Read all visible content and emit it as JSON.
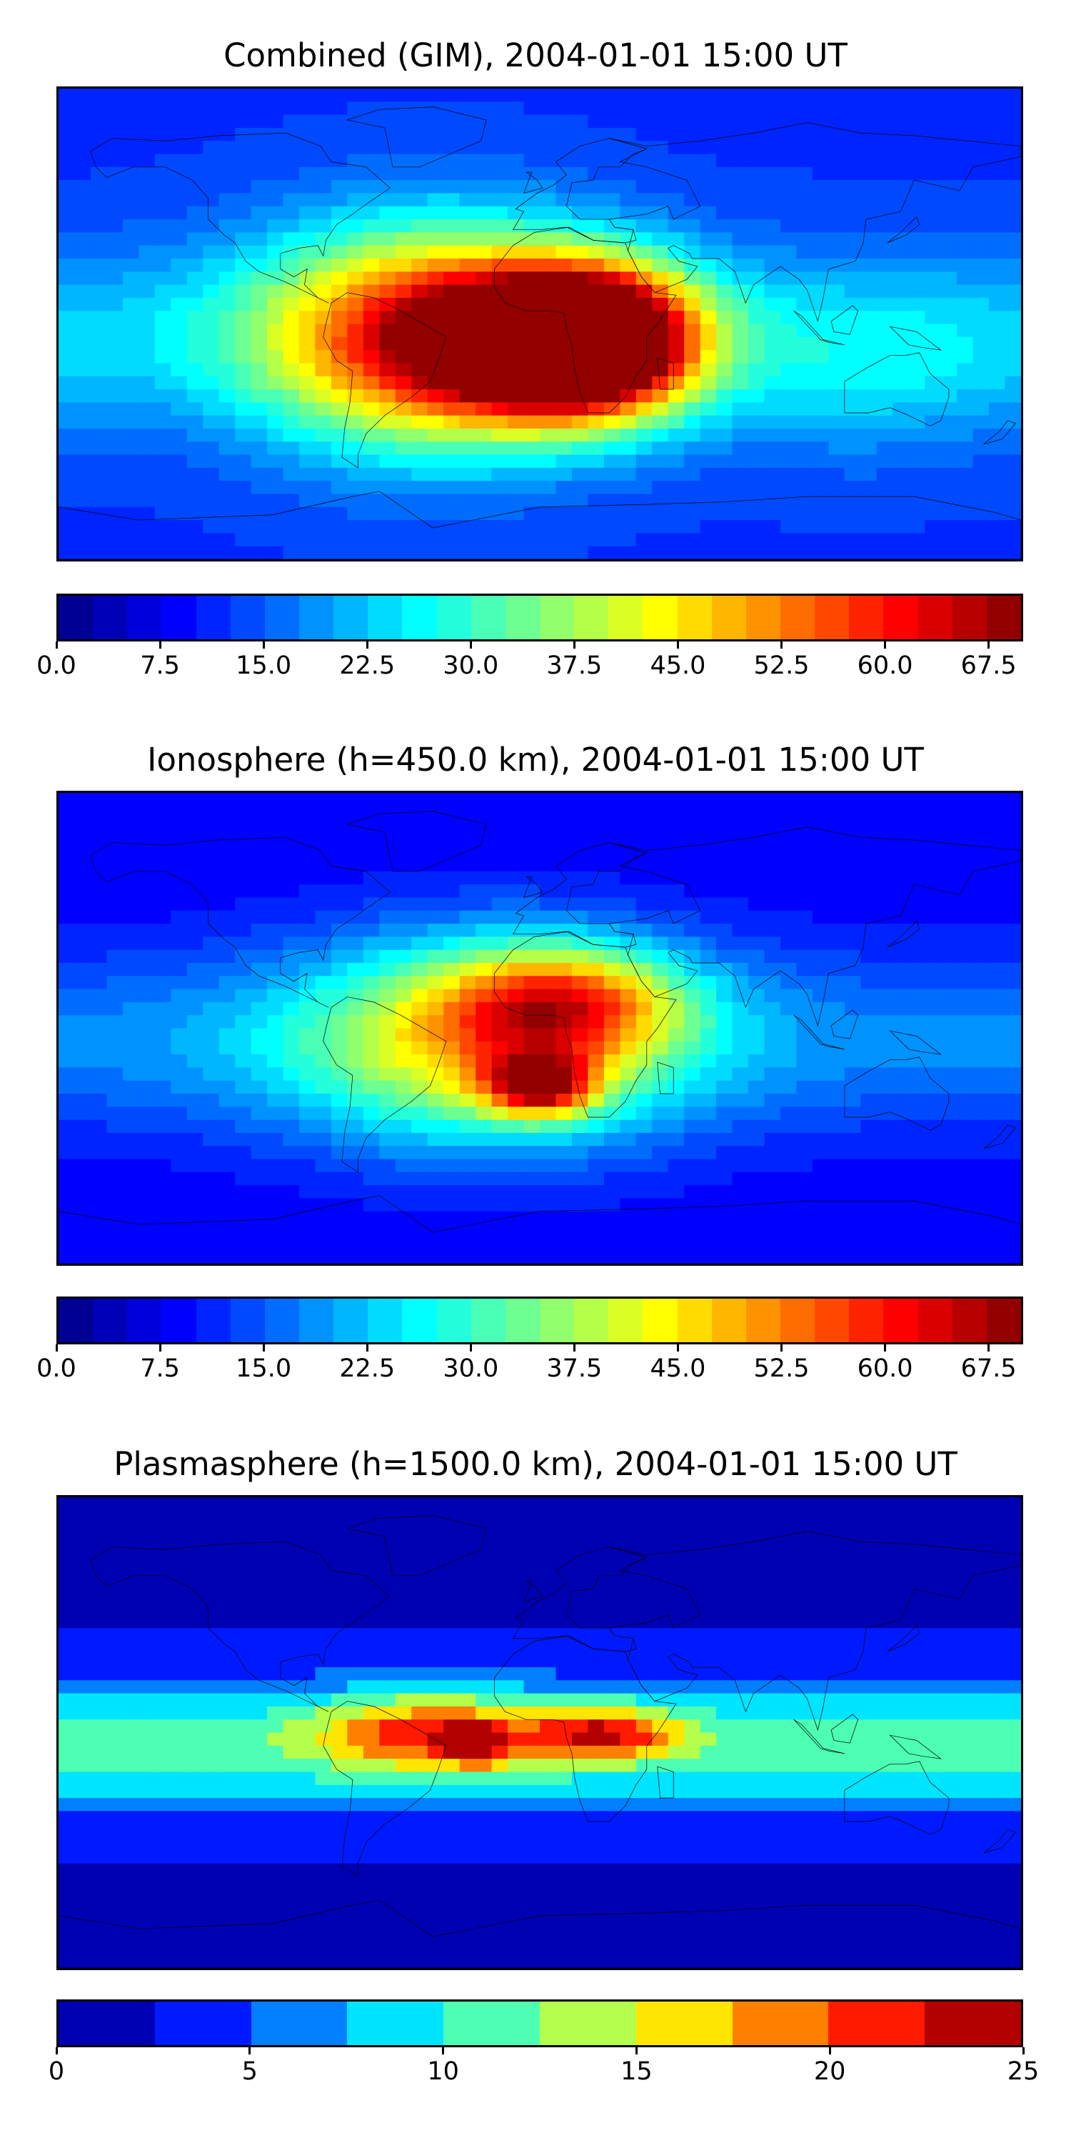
{
  "panels": [
    {
      "title": "Combined (GIM), 2004-01-01 15:00 UT",
      "colorbar": {
        "min": 0,
        "max": 70,
        "levels": 28,
        "tick_labels": [
          "0.0",
          "7.5",
          "15.0",
          "22.5",
          "30.0",
          "37.5",
          "45.0",
          "52.5",
          "60.0",
          "67.5"
        ],
        "tick_values": [
          0,
          7.5,
          15,
          22.5,
          30,
          37.5,
          45,
          52.5,
          60,
          67.5
        ]
      },
      "field_features": [
        {
          "lon": -40,
          "lat": -5,
          "value": 55,
          "spread_lon": 45,
          "spread_lat": 30
        },
        {
          "lon": 5,
          "lat": -8,
          "value": 62,
          "spread_lon": 30,
          "spread_lat": 18
        },
        {
          "lon": 25,
          "lat": -5,
          "value": 48,
          "spread_lon": 25,
          "spread_lat": 20
        },
        {
          "lon": 120,
          "lat": -20,
          "value": 18,
          "spread_lon": 40,
          "spread_lat": 25
        }
      ],
      "background_value": 12
    },
    {
      "title": "Ionosphere  (h=450.0 km), 2004-01-01 15:00 UT",
      "colorbar": {
        "min": 0,
        "max": 70,
        "levels": 28,
        "tick_labels": [
          "0.0",
          "7.5",
          "15.0",
          "22.5",
          "30.0",
          "37.5",
          "45.0",
          "52.5",
          "60.0",
          "67.5"
        ],
        "tick_values": [
          0,
          7.5,
          15,
          22.5,
          30,
          37.5,
          45,
          52.5,
          60,
          67.5
        ]
      },
      "field_features": [
        {
          "lon": -20,
          "lat": -5,
          "value": 38,
          "spread_lon": 50,
          "spread_lat": 28
        },
        {
          "lon": 0,
          "lat": -22,
          "value": 47,
          "spread_lon": 14,
          "spread_lat": 8
        },
        {
          "lon": 10,
          "lat": 10,
          "value": 36,
          "spread_lon": 30,
          "spread_lat": 15
        }
      ],
      "background_value": 8
    },
    {
      "title": "Plasmasphere (h=1500.0 km), 2004-01-01 15:00 UT",
      "colorbar": {
        "min": 0,
        "max": 25,
        "levels": 10,
        "tick_labels": [
          "0",
          "5",
          "10",
          "15",
          "20",
          "25"
        ],
        "tick_values": [
          0,
          5,
          10,
          15,
          20,
          25
        ]
      },
      "field_features": [
        {
          "lon": -25,
          "lat": -5,
          "value": 16,
          "spread_lon": 6,
          "spread_lat": 5
        },
        {
          "lon": 25,
          "lat": 0,
          "value": 14,
          "spread_lon": 20,
          "spread_lat": 7
        },
        {
          "lon": -40,
          "lat": 0,
          "value": 14,
          "spread_lon": 30,
          "spread_lat": 10
        }
      ],
      "background_value": 2,
      "equatorial_band_value": 11
    }
  ],
  "colormap": "jet",
  "coastline_color": "#000000"
}
